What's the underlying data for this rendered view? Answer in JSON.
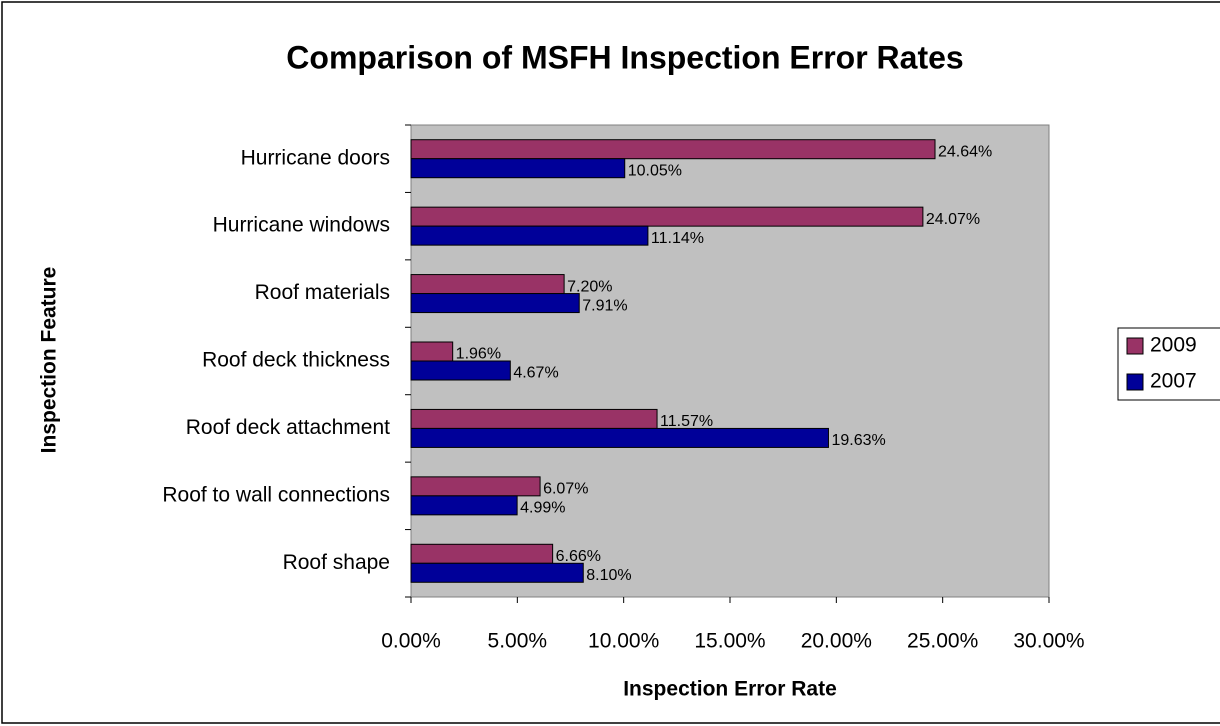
{
  "chart_data": {
    "type": "barh",
    "title": "Comparison of MSFH Inspection Error Rates",
    "x_label": "Inspection Error Rate",
    "y_label": "Inspection Feature",
    "categories": [
      "Hurricane doors",
      "Hurricane windows",
      "Roof materials",
      "Roof deck thickness",
      "Roof deck attachment",
      "Roof to wall connections",
      "Roof shape"
    ],
    "series": [
      {
        "name": "2009",
        "color": "#993366",
        "values": [
          24.64,
          24.07,
          7.2,
          1.96,
          11.57,
          6.07,
          6.66
        ],
        "value_labels": [
          "24.64%",
          "24.07%",
          "7.20%",
          "1.96%",
          "11.57%",
          "6.07%",
          "6.66%"
        ]
      },
      {
        "name": "2007",
        "color": "#000099",
        "values": [
          10.05,
          11.14,
          7.91,
          4.67,
          19.63,
          4.99,
          8.1
        ],
        "value_labels": [
          "10.05%",
          "11.14%",
          "7.91%",
          "4.67%",
          "19.63%",
          "4.99%",
          "8.10%"
        ]
      }
    ],
    "xlim": [
      0,
      30
    ],
    "xticks": [
      {
        "value": 0,
        "label": "0.00%"
      },
      {
        "value": 5,
        "label": "5.00%"
      },
      {
        "value": 10,
        "label": "10.00%"
      },
      {
        "value": 15,
        "label": "15.00%"
      },
      {
        "value": 20,
        "label": "20.00%"
      },
      {
        "value": 25,
        "label": "25.00%"
      },
      {
        "value": 30,
        "label": "30.00%"
      }
    ],
    "plot_background": "#c0c0c0",
    "legend": "right"
  }
}
